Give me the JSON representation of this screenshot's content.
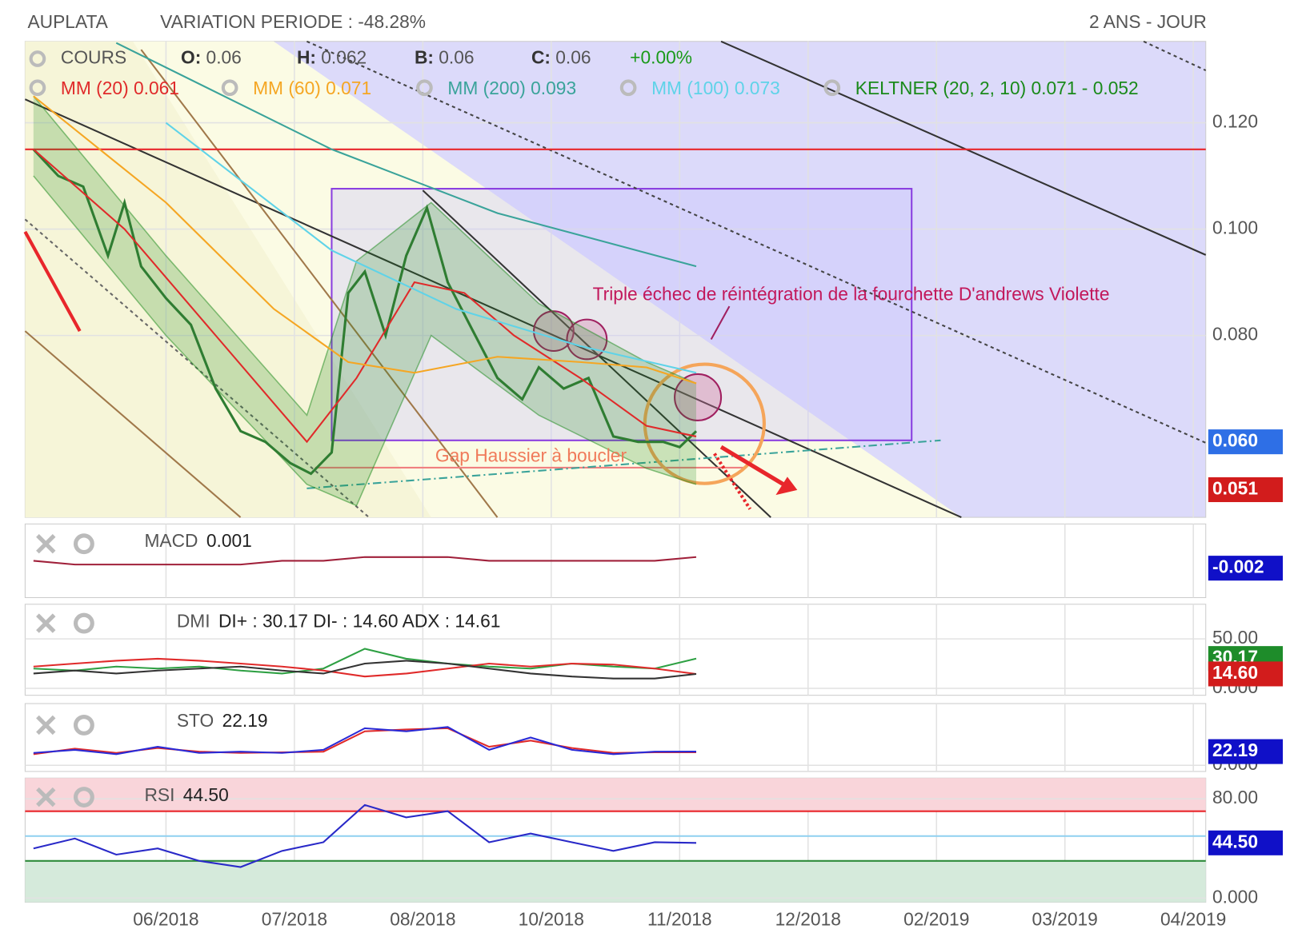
{
  "chart_data": [
    {
      "type": "line",
      "title": "AUPLATA",
      "subtitle": "VARIATION PERIODE : -48.28%",
      "period": "2 ANS - JOUR",
      "price_legend": {
        "fields": [
          {
            "key": "O:",
            "value": "0.06"
          },
          {
            "key": "H:",
            "value": "0.062"
          },
          {
            "key": "B:",
            "value": "0.06"
          },
          {
            "key": "C:",
            "value": "0.06"
          }
        ],
        "change": "+0.00%"
      },
      "xlim": [
        -0.097,
        9.097
      ],
      "xticks": [
        {
          "value": 1,
          "label": "06/2018"
        },
        {
          "value": 2,
          "label": "07/2018"
        },
        {
          "value": 3,
          "label": "08/2018"
        },
        {
          "value": 4,
          "label": "10/2018"
        },
        {
          "value": 5,
          "label": "11/2018"
        },
        {
          "value": 6,
          "label": "12/2018"
        },
        {
          "value": 7,
          "label": "02/2019"
        },
        {
          "value": 8,
          "label": "03/2019"
        },
        {
          "value": 9,
          "label": "04/2019"
        }
      ],
      "ylim": [
        0.0458,
        0.1353
      ],
      "yticks": [
        {
          "value": 0.12,
          "label": "0.120"
        },
        {
          "value": 0.1,
          "label": "0.100"
        },
        {
          "value": 0.08,
          "label": "0.080"
        }
      ],
      "grid": true,
      "series": [
        {
          "name": "COURS",
          "color": "#2f7d32",
          "x": [
            -0.032,
            0.161,
            0.355,
            0.548,
            0.677,
            0.806,
            1,
            1.194,
            1.387,
            1.581,
            1.774,
            1.968,
            2.129,
            2.29,
            2.419,
            2.548,
            2.71,
            2.871,
            3.032,
            3.194,
            3.387,
            3.581,
            3.774,
            3.903,
            4.097,
            4.29,
            4.484,
            4.677,
            4.871,
            5.0,
            5.129
          ],
          "values": [
            0.115,
            0.11,
            0.108,
            0.095,
            0.105,
            0.093,
            0.087,
            0.082,
            0.07,
            0.062,
            0.06,
            0.056,
            0.054,
            0.058,
            0.088,
            0.092,
            0.08,
            0.095,
            0.104,
            0.09,
            0.081,
            0.072,
            0.068,
            0.074,
            0.07,
            0.072,
            0.061,
            0.06,
            0.06,
            0.059,
            0.062
          ]
        },
        {
          "name": "MM (20) 0.061",
          "color": "#e02a2a",
          "x": [
            -0.032,
            0.677,
            1.387,
            2.097,
            2.484,
            2.935,
            3.323,
            3.71,
            4.226,
            4.742,
            5.129
          ],
          "values": [
            0.115,
            0.1,
            0.08,
            0.06,
            0.072,
            0.09,
            0.088,
            0.08,
            0.072,
            0.063,
            0.061
          ]
        },
        {
          "name": "MM (60) 0.071",
          "color": "#f5a623",
          "x": [
            -0.032,
            1,
            1.839,
            2.419,
            2.935,
            3.581,
            4.226,
            4.742,
            5.129
          ],
          "values": [
            0.125,
            0.105,
            0.085,
            0.075,
            0.073,
            0.076,
            0.075,
            0.074,
            0.071
          ]
        },
        {
          "name": "MM (200) 0.093",
          "color": "#3aa39a",
          "x": [
            0.613,
            2.29,
            3.581,
            5.129
          ],
          "values": [
            0.135,
            0.115,
            0.103,
            0.093
          ]
        },
        {
          "name": "MM (100) 0.073",
          "color": "#5fd3e8",
          "x": [
            1,
            2.29,
            3.258,
            4.226,
            5.129
          ],
          "values": [
            0.12,
            0.096,
            0.085,
            0.078,
            0.073
          ]
        }
      ],
      "band": {
        "name": "KELTNER (20, 2, 10) 0.071 - 0.052",
        "color": "#1a8a1a",
        "x": [
          -0.032,
          1,
          2.097,
          2.484,
          3.065,
          3.903,
          4.742,
          5.129
        ],
        "upper": [
          0.125,
          0.095,
          0.065,
          0.094,
          0.105,
          0.086,
          0.075,
          0.071
        ],
        "lower": [
          0.11,
          0.08,
          0.052,
          0.048,
          0.08,
          0.065,
          0.055,
          0.052
        ]
      },
      "reference_lines": [
        {
          "value": 0.115,
          "color": "#e8262b"
        }
      ],
      "last_values": [
        {
          "value": 0.06,
          "label": "0.060",
          "color": "#2e6fe6"
        },
        {
          "value": 0.051,
          "label": "0.051",
          "color": "#d21c1c"
        }
      ],
      "annotations": [
        "Triple échec de réintégration de la fourchette D'andrews Violette",
        "Gap Haussier à boucler"
      ]
    },
    {
      "type": "line",
      "title": "MACD",
      "readout": "0.001",
      "ylim": [
        -0.01,
        0.01
      ],
      "x": [
        -0.032,
        0.29,
        0.613,
        0.935,
        1.258,
        1.581,
        1.903,
        2.226,
        2.548,
        2.871,
        3.194,
        3.516,
        3.839,
        4.161,
        4.484,
        4.806,
        5.129
      ],
      "series": [
        {
          "color": "#a0203a",
          "values": [
            0,
            -0.001,
            -0.001,
            -0.001,
            -0.001,
            -0.001,
            0,
            0,
            0.001,
            0.001,
            0.001,
            0,
            0,
            0,
            0,
            0,
            0.001
          ]
        }
      ],
      "last_values": [
        {
          "value": -0.002,
          "label": "-0.002",
          "color": "#1010c8"
        }
      ]
    },
    {
      "type": "line",
      "title": "DMI",
      "readout": "DI+ : 30.17 DI- : 14.60 ADX : 14.61",
      "ylim": [
        -7,
        85
      ],
      "yticks": [
        {
          "value": 50,
          "label": "50.00"
        },
        {
          "value": 0,
          "label": "0.000"
        }
      ],
      "x": [
        -0.032,
        0.29,
        0.613,
        0.935,
        1.258,
        1.581,
        1.903,
        2.226,
        2.548,
        2.871,
        3.194,
        3.516,
        3.839,
        4.161,
        4.484,
        4.806,
        5.129
      ],
      "series": [
        {
          "color": "#2ea043",
          "values": [
            20,
            18,
            22,
            20,
            22,
            18,
            15,
            20,
            40,
            30,
            25,
            22,
            20,
            25,
            22,
            20,
            30.17
          ]
        },
        {
          "color": "#e02a2a",
          "values": [
            22,
            25,
            28,
            30,
            28,
            25,
            22,
            18,
            12,
            15,
            20,
            25,
            22,
            25,
            24,
            20,
            14.6
          ]
        },
        {
          "color": "#333333",
          "values": [
            15,
            18,
            15,
            18,
            20,
            22,
            18,
            15,
            25,
            28,
            25,
            20,
            15,
            12,
            10,
            10,
            14.61
          ]
        }
      ],
      "last_values": [
        {
          "value": 30.17,
          "label": "30.17",
          "color": "#1e8c2a"
        },
        {
          "value": 14.6,
          "label": "14.60",
          "color": "#d21c1c"
        }
      ]
    },
    {
      "type": "line",
      "title": "STO",
      "readout": "22.19",
      "ylim": [
        -10,
        100
      ],
      "yticks": [
        {
          "value": 0,
          "label": "0.000"
        }
      ],
      "x": [
        -0.032,
        0.29,
        0.613,
        0.935,
        1.258,
        1.581,
        1.903,
        2.226,
        2.548,
        2.871,
        3.194,
        3.516,
        3.839,
        4.161,
        4.484,
        4.806,
        5.129
      ],
      "series": [
        {
          "color": "#e02a2a",
          "values": [
            18,
            27,
            20,
            28,
            22,
            20,
            21,
            22,
            55,
            58,
            60,
            30,
            40,
            28,
            20,
            21,
            21
          ]
        },
        {
          "color": "#2929d6",
          "values": [
            20,
            25,
            18,
            30,
            20,
            22,
            20,
            25,
            60,
            55,
            62,
            25,
            45,
            25,
            18,
            22,
            22.19
          ]
        }
      ],
      "last_values": [
        {
          "value": 22.19,
          "label": "22.19",
          "color": "#1010c8"
        }
      ]
    },
    {
      "type": "line",
      "title": "RSI",
      "readout": "44.50",
      "ylim": [
        -3.3,
        96.7
      ],
      "yticks": [
        {
          "value": 80,
          "label": "80.00"
        },
        {
          "value": 0,
          "label": "0.000"
        }
      ],
      "levels": [
        {
          "value": 70,
          "color": "#e8262b",
          "shade": "above",
          "fill": "#f9d5da"
        },
        {
          "value": 50,
          "color": "#8fd0f0"
        },
        {
          "value": 30,
          "color": "#2e8b3a",
          "shade": "below",
          "fill": "#d5eadb"
        }
      ],
      "x": [
        -0.032,
        0.29,
        0.613,
        0.935,
        1.258,
        1.581,
        1.903,
        2.226,
        2.548,
        2.871,
        3.194,
        3.516,
        3.839,
        4.161,
        4.484,
        4.806,
        5.129
      ],
      "series": [
        {
          "color": "#2929c8",
          "values": [
            40,
            48,
            35,
            40,
            30,
            25,
            38,
            45,
            75,
            65,
            70,
            45,
            52,
            45,
            38,
            45,
            44.5
          ]
        }
      ],
      "last_values": [
        {
          "value": 44.5,
          "label": "44.50",
          "color": "#1010c8"
        }
      ]
    }
  ]
}
